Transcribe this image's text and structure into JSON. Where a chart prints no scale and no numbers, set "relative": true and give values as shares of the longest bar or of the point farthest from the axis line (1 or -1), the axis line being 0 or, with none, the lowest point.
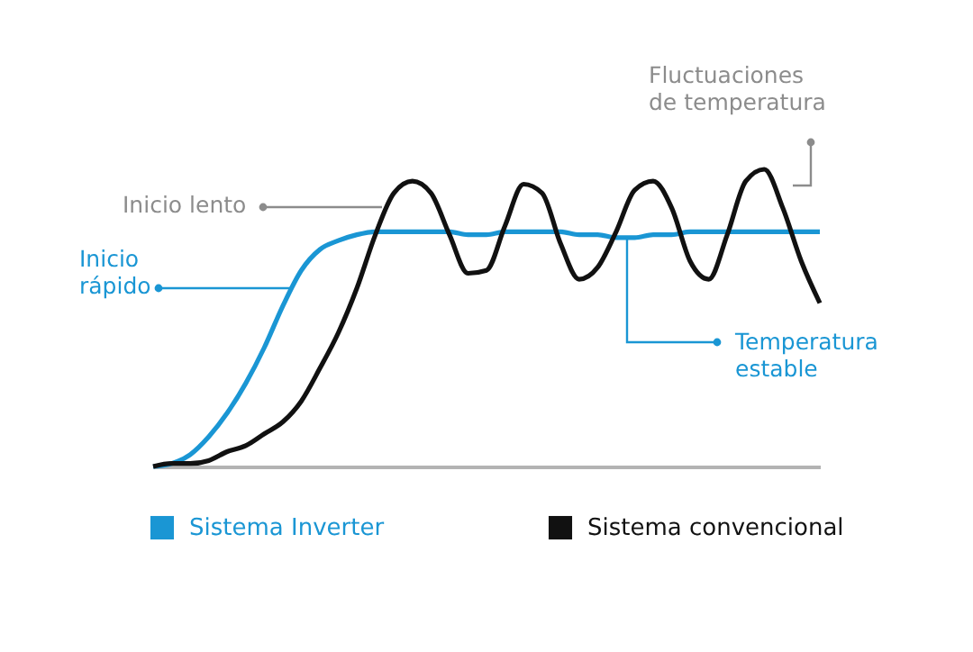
{
  "chart_data": {
    "type": "line",
    "relative": true,
    "legend": "bottom left",
    "categories": [
      null,
      null,
      null,
      null,
      null,
      null,
      null,
      null,
      null,
      null,
      null,
      null,
      null,
      null,
      null,
      null,
      null,
      null,
      null,
      null,
      null,
      null,
      null,
      null,
      null,
      null,
      null,
      null,
      null,
      null,
      null,
      null,
      null,
      null,
      null,
      null,
      null
    ],
    "series": [
      {
        "name": "Sistema Inverter",
        "color": "#1a96d4",
        "values": [
          0,
          0.01,
          0.04,
          0.1,
          0.18,
          0.28,
          0.4,
          0.54,
          0.66,
          0.73,
          0.76,
          0.78,
          0.79,
          0.79,
          0.79,
          0.79,
          0.79,
          0.78,
          0.78,
          0.79,
          0.79,
          0.79,
          0.79,
          0.78,
          0.78,
          0.77,
          0.77,
          0.78,
          0.78,
          0.79,
          0.79,
          0.79,
          0.79,
          0.79,
          0.79,
          0.79,
          0.79
        ]
      },
      {
        "name": "Sistema convencional",
        "color": "#111111",
        "values": [
          0,
          0.01,
          0.01,
          0.02,
          0.05,
          0.07,
          0.11,
          0.15,
          0.22,
          0.33,
          0.45,
          0.6,
          0.78,
          0.92,
          0.96,
          0.92,
          0.78,
          0.65,
          0.66,
          0.81,
          0.95,
          0.92,
          0.75,
          0.63,
          0.67,
          0.79,
          0.93,
          0.96,
          0.87,
          0.69,
          0.63,
          0.78,
          0.96,
          1,
          0.87,
          0.69,
          0.55
        ]
      }
    ],
    "annotations": [
      "Fluctuaciones de temperatura",
      "Inicio lento",
      "Inicio rápido",
      "Temperatura estable"
    ]
  }
}
